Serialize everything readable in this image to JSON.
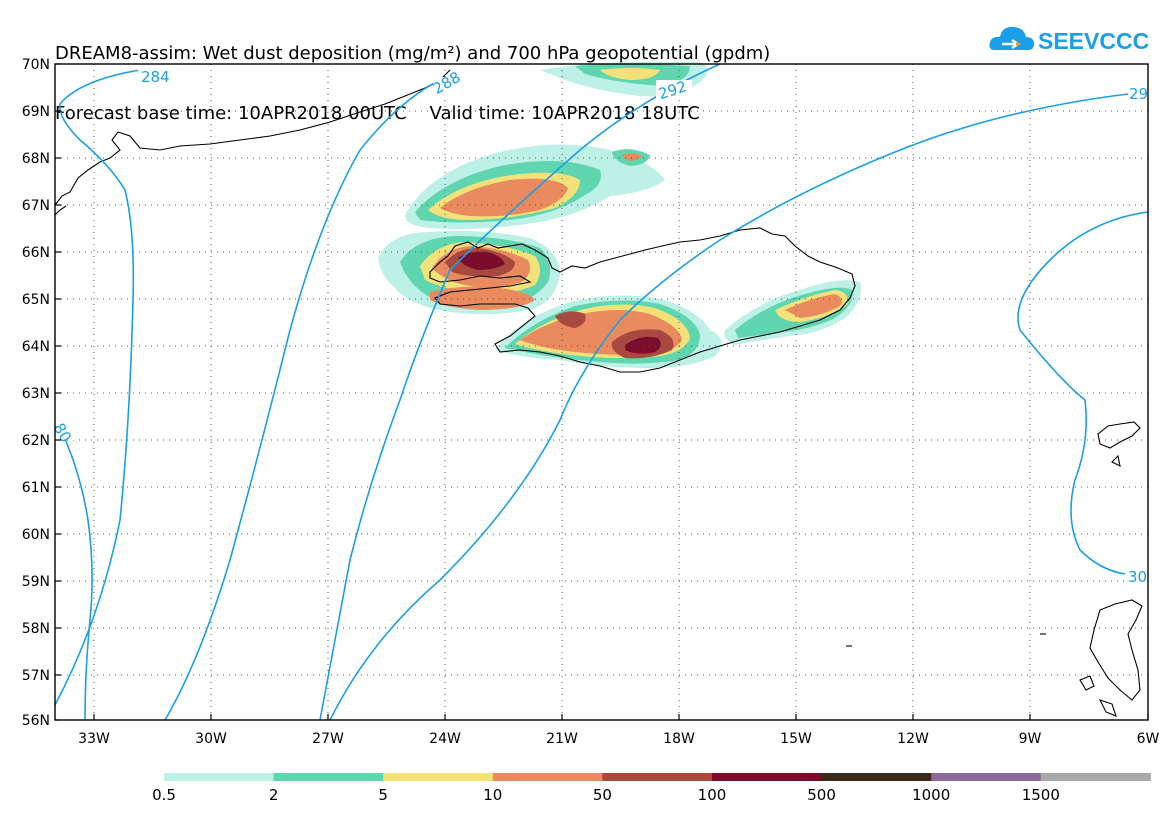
{
  "title": {
    "line1": "DREAM8-assim: Wet dust deposition (mg/m²) and 700 hPa geopotential (gpdm)",
    "line2": "Forecast base time: 10APR2018 00UTC    Valid time: 10APR2018 18UTC"
  },
  "logo": {
    "text": "SEEVCCC",
    "icon": "cloud-logo-icon",
    "color": "#1a9fe8"
  },
  "axes": {
    "lat_labels": [
      "70N",
      "69N",
      "68N",
      "67N",
      "66N",
      "65N",
      "64N",
      "63N",
      "62N",
      "61N",
      "60N",
      "59N",
      "58N",
      "57N",
      "56N"
    ],
    "lon_labels": [
      "33W",
      "30W",
      "27W",
      "24W",
      "21W",
      "18W",
      "15W",
      "12W",
      "9W",
      "6W"
    ],
    "lat_range": [
      56,
      70
    ],
    "lon_range": [
      -34.5,
      -6
    ]
  },
  "isoline_labels": [
    "284",
    "288",
    "292",
    "29",
    "80",
    "30"
  ],
  "legend": {
    "labels": [
      "0.5",
      "2",
      "5",
      "10",
      "50",
      "100",
      "500",
      "1000",
      "1500"
    ],
    "colors": [
      "#bdf0e6",
      "#5fd6b0",
      "#f3e27a",
      "#e98b5e",
      "#a8493f",
      "#7a0c2c",
      "#3b2a1a",
      "#8e6a9a",
      "#a9a9a9"
    ]
  },
  "colors": {
    "contour": "#1a9fe8",
    "coast": "#000000"
  }
}
